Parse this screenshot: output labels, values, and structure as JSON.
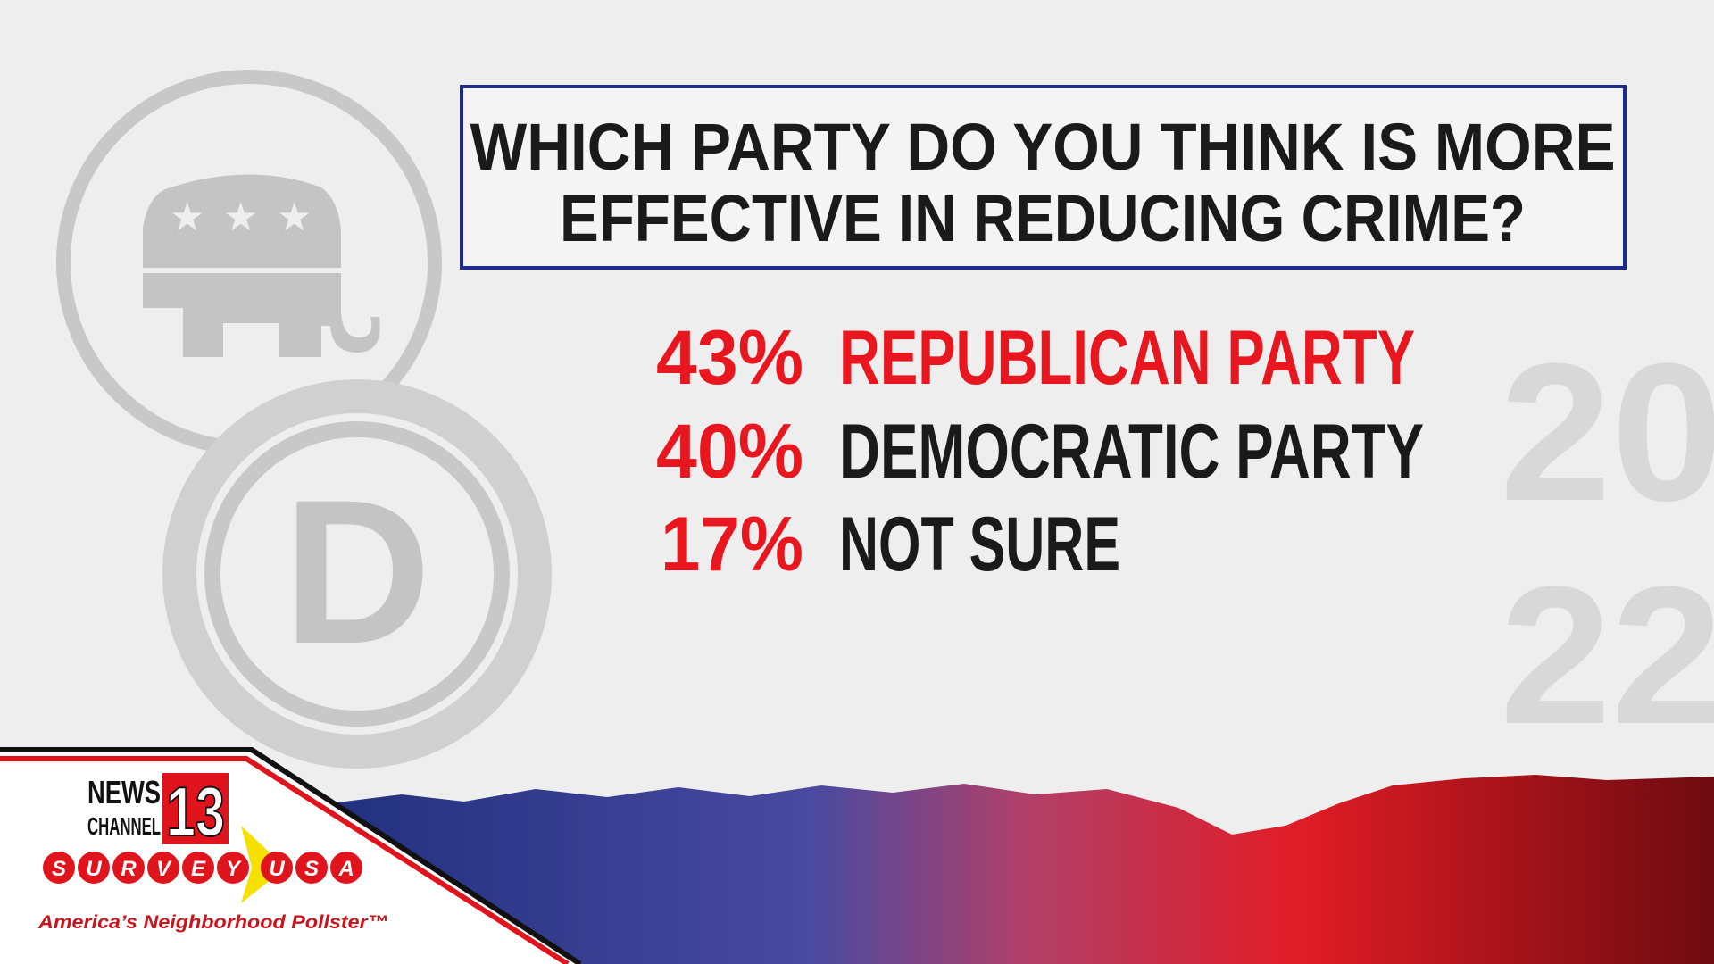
{
  "title": {
    "lines": [
      "WHICH PARTY DO YOU THINK IS MORE",
      "EFFECTIVE IN REDUCING CRIME?"
    ]
  },
  "results": [
    {
      "percent": "43%",
      "label": "REPUBLICAN PARTY"
    },
    {
      "percent": "40%",
      "label": "DEMOCRATIC PARTY"
    },
    {
      "percent": "17%",
      "label": "NOT SURE"
    }
  ],
  "background": {
    "party_letter": "D",
    "year": [
      "20",
      "22"
    ]
  },
  "logo": {
    "news": "NEWS",
    "channel": "CHANNEL",
    "number": "13",
    "survey": [
      "S",
      "U",
      "R",
      "V",
      "E",
      "Y",
      "U",
      "S",
      "A"
    ],
    "tagline": "America’s Neighborhood Pollster™"
  }
}
